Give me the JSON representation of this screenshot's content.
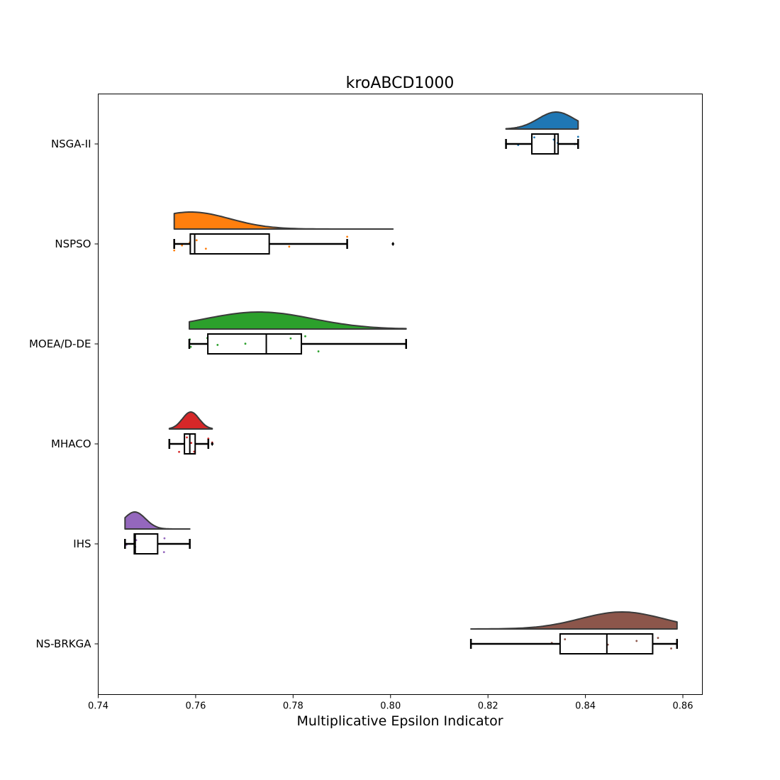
{
  "chart_data": {
    "type": "raincloud",
    "title": "kroABCD1000",
    "xlabel": "Multiplicative Epsilon Indicator",
    "ylabel": "",
    "xlim": [
      0.74,
      0.864
    ],
    "xticks": [
      0.74,
      0.76,
      0.78,
      0.8,
      0.82,
      0.84,
      0.86
    ],
    "xtick_labels": [
      "0.74",
      "0.76",
      "0.78",
      "0.80",
      "0.82",
      "0.84",
      "0.86"
    ],
    "grid": false,
    "series": [
      {
        "name": "NSGA-II",
        "color": "#1f77b4",
        "box": {
          "whislo": 0.8237,
          "q1": 0.829,
          "med": 0.8337,
          "q3": 0.8344,
          "whishi": 0.8385
        },
        "fliers": [],
        "points": [
          0.8237,
          0.8262,
          0.8295,
          0.8335,
          0.8343,
          0.8378,
          0.8385
        ],
        "density": {
          "min": 0.8237,
          "max": 0.8385,
          "peak": 0.834,
          "sd": 0.0037
        }
      },
      {
        "name": "NSPSO",
        "color": "#ff7f0e",
        "box": {
          "whislo": 0.7556,
          "q1": 0.7589,
          "med": 0.7598,
          "q3": 0.7751,
          "whishi": 0.7911
        },
        "fliers": [
          0.8005
        ],
        "points": [
          0.7556,
          0.7572,
          0.7588,
          0.7602,
          0.7621,
          0.7792,
          0.7911,
          0.8005
        ],
        "density": {
          "min": 0.7556,
          "max": 0.8005,
          "peak": 0.759,
          "sd": 0.008
        }
      },
      {
        "name": "MOEA/D-DE",
        "color": "#2ca02c",
        "box": {
          "whislo": 0.7587,
          "q1": 0.7625,
          "med": 0.7745,
          "q3": 0.7817,
          "whishi": 0.8032
        },
        "fliers": [],
        "points": [
          0.7588,
          0.759,
          0.7624,
          0.7645,
          0.7702,
          0.7795,
          0.7825,
          0.7852
        ],
        "density": {
          "min": 0.7587,
          "max": 0.8032,
          "peak": 0.773,
          "sd": 0.011
        }
      },
      {
        "name": "MHACO",
        "color": "#d62728",
        "box": {
          "whislo": 0.7546,
          "q1": 0.7577,
          "med": 0.7588,
          "q3": 0.7599,
          "whishi": 0.7626
        },
        "fliers": [
          0.7634
        ],
        "points": [
          0.7566,
          0.7582,
          0.7591,
          0.7597,
          0.7626,
          0.7634
        ],
        "density": {
          "min": 0.7546,
          "max": 0.7634,
          "peak": 0.759,
          "sd": 0.0017
        }
      },
      {
        "name": "IHS",
        "color": "#9467bd",
        "box": {
          "whislo": 0.7455,
          "q1": 0.7474,
          "med": 0.7476,
          "q3": 0.7522,
          "whishi": 0.7588
        },
        "fliers": [],
        "points": [
          0.7458,
          0.7476,
          0.7478,
          0.7536,
          0.7535
        ],
        "density": {
          "min": 0.7455,
          "max": 0.7588,
          "peak": 0.7475,
          "sd": 0.0022
        }
      },
      {
        "name": "NS-BRKGA",
        "color": "#8c564b",
        "box": {
          "whislo": 0.8165,
          "q1": 0.8348,
          "med": 0.8444,
          "q3": 0.8538,
          "whishi": 0.8588
        },
        "fliers": [],
        "points": [
          0.8331,
          0.8358,
          0.8446,
          0.8505,
          0.8549,
          0.8576,
          0.8588
        ],
        "density": {
          "min": 0.8165,
          "max": 0.8588,
          "peak": 0.8475,
          "sd": 0.0085
        }
      }
    ]
  }
}
